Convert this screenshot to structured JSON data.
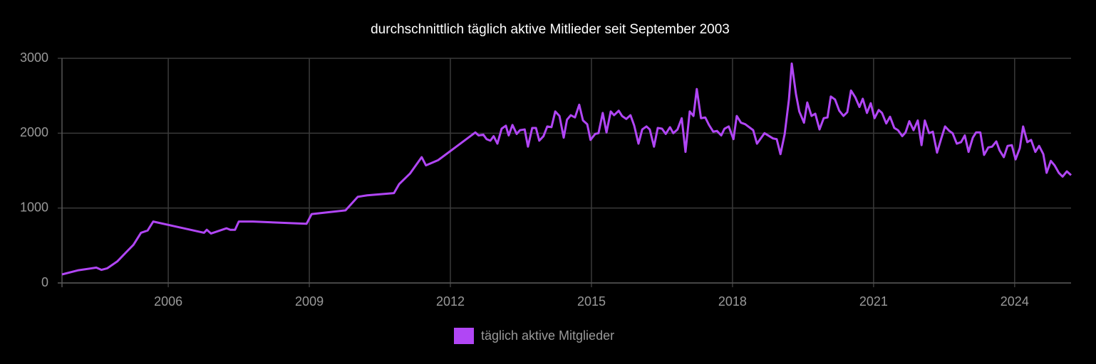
{
  "chart_data": {
    "type": "line",
    "title": "durchschnittlich täglich aktive Mitlieder seit September 2003",
    "x": [
      2003.74,
      2004.09,
      2004.47,
      2004.58,
      2004.7,
      2004.92,
      2005.12,
      2005.26,
      2005.42,
      2005.56,
      2005.68,
      2006.76,
      2006.82,
      2006.91,
      2007.24,
      2007.32,
      2007.42,
      2007.5,
      2007.8,
      2008.94,
      2009.05,
      2009.77,
      2010.03,
      2010.23,
      2010.8,
      2010.91,
      2011.14,
      2011.39,
      2011.48,
      2011.74,
      2012.53,
      2012.6,
      2012.7,
      2012.77,
      2012.85,
      2012.92,
      2013.0,
      2013.09,
      2013.18,
      2013.24,
      2013.32,
      2013.41,
      2013.48,
      2013.58,
      2013.65,
      2013.74,
      2013.82,
      2013.89,
      2013.98,
      2014.06,
      2014.15,
      2014.23,
      2014.32,
      2014.41,
      2014.48,
      2014.56,
      2014.65,
      2014.74,
      2014.82,
      2014.91,
      2014.98,
      2015.08,
      2015.15,
      2015.24,
      2015.32,
      2015.41,
      2015.48,
      2015.58,
      2015.65,
      2015.74,
      2015.83,
      2015.91,
      2016.0,
      2016.08,
      2016.17,
      2016.24,
      2016.33,
      2016.41,
      2016.5,
      2016.58,
      2016.67,
      2016.74,
      2016.83,
      2016.92,
      2017.0,
      2017.09,
      2017.17,
      2017.24,
      2017.33,
      2017.42,
      2017.5,
      2017.59,
      2017.67,
      2017.76,
      2017.83,
      2017.92,
      2018.02,
      2018.09,
      2018.18,
      2018.27,
      2018.44,
      2018.52,
      2018.68,
      2018.86,
      2018.94,
      2019.02,
      2019.11,
      2019.2,
      2019.26,
      2019.35,
      2019.42,
      2019.52,
      2019.59,
      2019.68,
      2019.76,
      2019.85,
      2019.94,
      2020.02,
      2020.09,
      2020.18,
      2020.27,
      2020.36,
      2020.44,
      2020.52,
      2020.61,
      2020.7,
      2020.77,
      2020.86,
      2020.94,
      2021.02,
      2021.11,
      2021.18,
      2021.27,
      2021.35,
      2021.44,
      2021.52,
      2021.61,
      2021.68,
      2021.76,
      2021.85,
      2021.94,
      2022.02,
      2022.09,
      2022.18,
      2022.26,
      2022.35,
      2022.44,
      2022.52,
      2022.61,
      2022.68,
      2022.77,
      2022.86,
      2022.94,
      2023.02,
      2023.11,
      2023.18,
      2023.27,
      2023.35,
      2023.44,
      2023.52,
      2023.61,
      2023.68,
      2023.77,
      2023.85,
      2023.94,
      2024.02,
      2024.11,
      2024.18,
      2024.27,
      2024.35,
      2024.44,
      2024.52,
      2024.61,
      2024.68,
      2024.77,
      2024.85,
      2024.94,
      2025.02,
      2025.11,
      2025.2
    ],
    "series": [
      {
        "name": "täglich aktive Mitglieder",
        "color": "#b146f5",
        "values": [
          114,
          170,
          205,
          175,
          195,
          290,
          420,
          510,
          670,
          700,
          820,
          670,
          710,
          660,
          730,
          710,
          710,
          820,
          820,
          790,
          920,
          970,
          1150,
          1170,
          1200,
          1320,
          1460,
          1680,
          1570,
          1640,
          2010,
          1970,
          1980,
          1920,
          1900,
          1960,
          1860,
          2060,
          2100,
          1970,
          2110,
          1990,
          2040,
          2050,
          1820,
          2070,
          2070,
          1900,
          1960,
          2090,
          2080,
          2290,
          2230,
          1940,
          2180,
          2240,
          2210,
          2380,
          2170,
          2120,
          1910,
          1990,
          2000,
          2270,
          2010,
          2290,
          2240,
          2300,
          2230,
          2190,
          2240,
          2100,
          1860,
          2050,
          2090,
          2050,
          1820,
          2070,
          2060,
          1990,
          2080,
          2000,
          2050,
          2200,
          1750,
          2290,
          2230,
          2590,
          2200,
          2210,
          2110,
          2020,
          2030,
          1970,
          2060,
          2090,
          1920,
          2230,
          2140,
          2120,
          2040,
          1860,
          2000,
          1930,
          1920,
          1720,
          1990,
          2450,
          2930,
          2520,
          2290,
          2140,
          2410,
          2230,
          2260,
          2050,
          2200,
          2210,
          2490,
          2450,
          2300,
          2230,
          2280,
          2570,
          2480,
          2350,
          2460,
          2270,
          2400,
          2200,
          2310,
          2270,
          2130,
          2220,
          2070,
          2040,
          1960,
          2010,
          2160,
          2040,
          2170,
          1840,
          2170,
          2000,
          2020,
          1740,
          1930,
          2090,
          2030,
          2000,
          1860,
          1880,
          1970,
          1750,
          1940,
          2010,
          2010,
          1710,
          1810,
          1820,
          1890,
          1770,
          1680,
          1830,
          1840,
          1650,
          1800,
          2090,
          1880,
          1910,
          1750,
          1830,
          1720,
          1470,
          1630,
          1570,
          1470,
          1420,
          1490,
          1440
        ]
      }
    ],
    "xlim": [
      2003.74,
      2025.2
    ],
    "xticks": [
      2006,
      2009,
      2012,
      2015,
      2018,
      2021,
      2024
    ],
    "ylim": [
      0,
      3000
    ],
    "yticks": [
      0,
      1000,
      2000,
      3000
    ],
    "grid": true,
    "legend": "bottom"
  }
}
